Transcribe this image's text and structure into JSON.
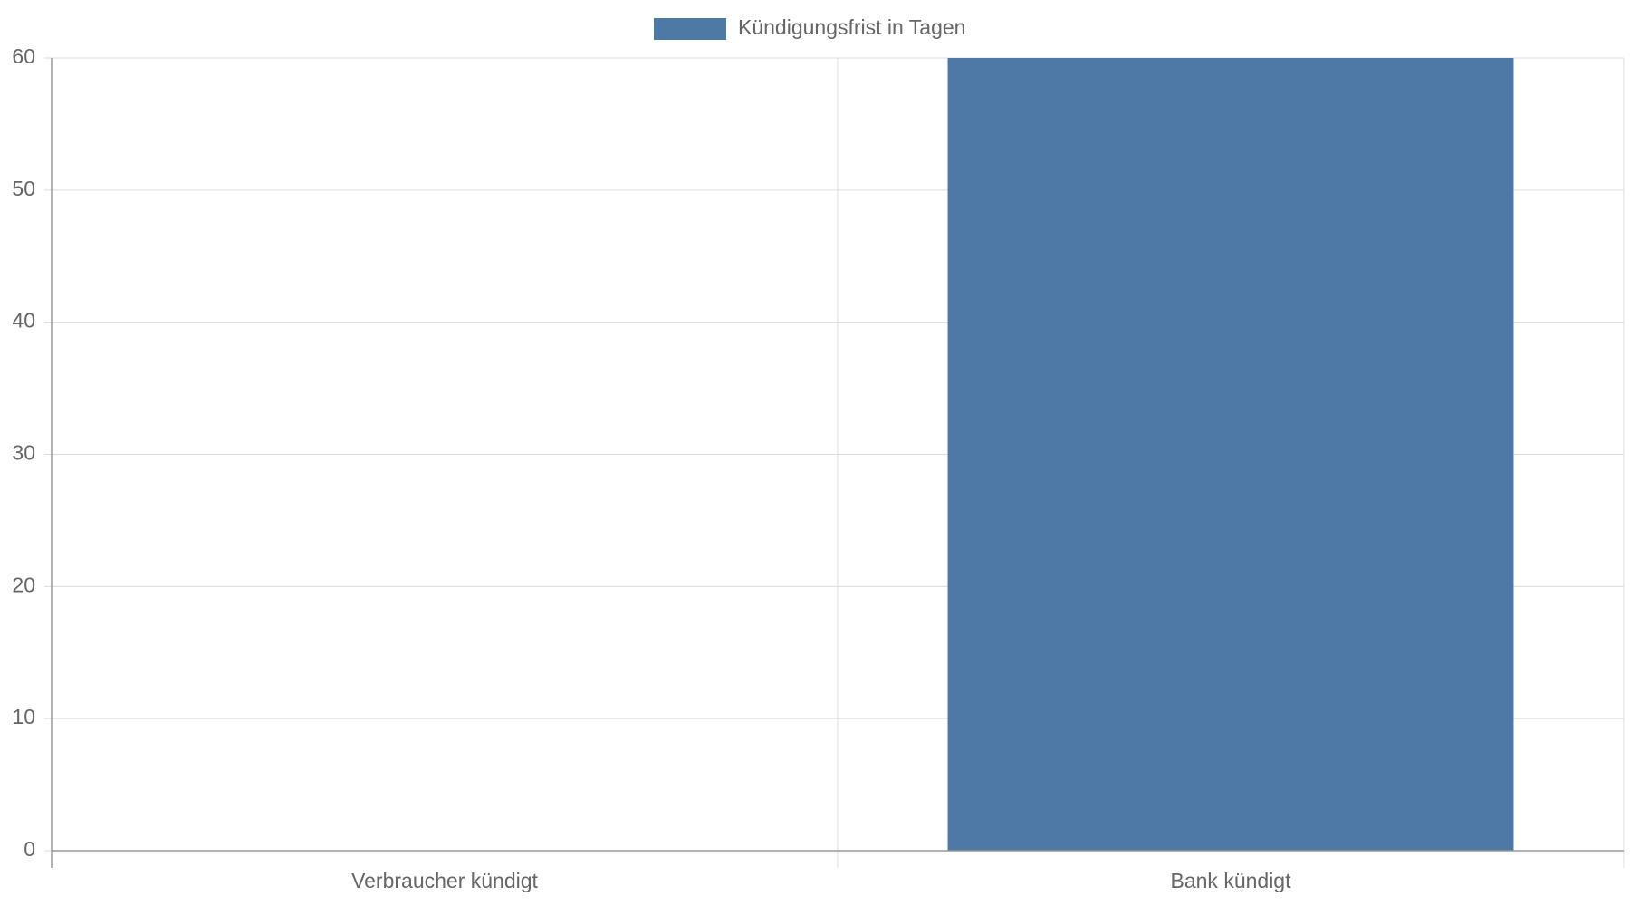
{
  "chart_data": {
    "type": "bar",
    "categories": [
      "Verbraucher kündigt",
      "Bank kündigt"
    ],
    "series": [
      {
        "name": "Kündigungsfrist in Tagen",
        "color": "#4e78a6",
        "values": [
          0,
          60
        ]
      }
    ],
    "ylim": [
      0,
      60
    ],
    "yticks": [
      0,
      10,
      20,
      30,
      40,
      50,
      60
    ],
    "grid": true,
    "legend": "top"
  }
}
